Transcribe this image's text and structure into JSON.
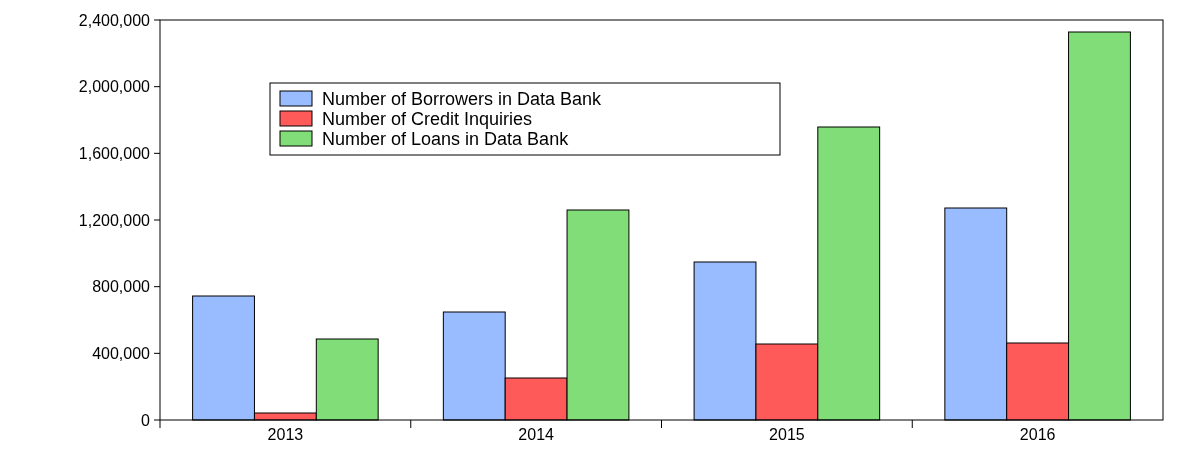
{
  "chart_data": {
    "type": "bar",
    "categories": [
      "2013",
      "2014",
      "2015",
      "2016"
    ],
    "series": [
      {
        "name": "Number of Borrowers in Data Bank",
        "color": "#99bbff",
        "values": [
          744000,
          648000,
          948000,
          1272000
        ]
      },
      {
        "name": "Number of Credit Inquiries",
        "color": "#ff5a5a",
        "values": [
          42000,
          252000,
          456000,
          462000
        ]
      },
      {
        "name": "Number of Loans in Data Bank",
        "color": "#80dd77",
        "values": [
          486000,
          1260000,
          1758000,
          2328000
        ]
      }
    ],
    "ylim": [
      0,
      2400000
    ],
    "yticks": [
      {
        "value": 0,
        "label": "0"
      },
      {
        "value": 400000,
        "label": "400,000"
      },
      {
        "value": 800000,
        "label": "800,000"
      },
      {
        "value": 1200000,
        "label": "1,200,000"
      },
      {
        "value": 1600000,
        "label": "1,600,000"
      },
      {
        "value": 2000000,
        "label": "2,000,000"
      },
      {
        "value": 2400000,
        "label": "2,400,000"
      }
    ],
    "grid": false,
    "legend": "top left"
  }
}
